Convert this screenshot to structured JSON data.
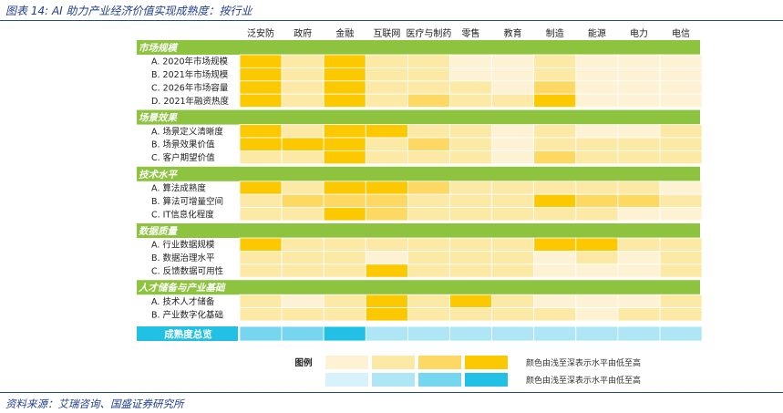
{
  "figure": {
    "title": "图表 14: AI 助力产业经济价值实现成熟度：按行业",
    "source": "资料来源：艾瑞咨询、国盛证券研究所"
  },
  "colors": {
    "section_green": "#8dc33f",
    "yellow_scale": [
      "#fdf3d4",
      "#fde9a6",
      "#fdd862",
      "#fcc800"
    ],
    "blue_scale": [
      "#d8f2fb",
      "#aee6f6",
      "#76d6ef",
      "#23c0e6"
    ],
    "summary_label_bg": "#23c0e6"
  },
  "chart_data": {
    "type": "heatmap",
    "columns": [
      "泛安防",
      "政府",
      "金融",
      "互联网",
      "医疗与制药",
      "零售",
      "教育",
      "制造",
      "能源",
      "电力",
      "电信"
    ],
    "scale_note": "levels 1 (light) to 4 (dark)",
    "sections": [
      {
        "title": "市场规模",
        "rows": [
          {
            "label": "A. 2020年市场规模",
            "values": [
              4,
              2,
              4,
              2,
              2,
              1,
              1,
              2,
              1,
              1,
              1
            ]
          },
          {
            "label": "B. 2021年市场规模",
            "values": [
              4,
              2,
              4,
              2,
              2,
              1,
              1,
              2,
              1,
              1,
              1
            ]
          },
          {
            "label": "C. 2026年市场容量",
            "values": [
              4,
              2,
              4,
              2,
              2,
              2,
              1,
              3,
              1,
              1,
              1
            ]
          },
          {
            "label": "D. 2021年融资热度",
            "values": [
              4,
              2,
              4,
              2,
              3,
              2,
              2,
              4,
              1,
              1,
              1
            ]
          }
        ]
      },
      {
        "title": "场景效果",
        "rows": [
          {
            "label": "A. 场景定义清晰度",
            "values": [
              4,
              2,
              4,
              4,
              2,
              2,
              1,
              2,
              1,
              1,
              2
            ]
          },
          {
            "label": "B. 场景效果价值",
            "values": [
              4,
              4,
              4,
              2,
              3,
              2,
              1,
              2,
              2,
              2,
              2
            ]
          },
          {
            "label": "C. 客户期望价值",
            "values": [
              2,
              2,
              4,
              2,
              2,
              2,
              1,
              3,
              2,
              2,
              2
            ]
          }
        ]
      },
      {
        "title": "技术水平",
        "rows": [
          {
            "label": "A. 算法成熟度",
            "values": [
              4,
              2,
              4,
              4,
              3,
              2,
              2,
              2,
              2,
              2,
              1
            ]
          },
          {
            "label": "B. 算法可增量空间",
            "values": [
              2,
              3,
              3,
              3,
              2,
              2,
              2,
              4,
              3,
              3,
              2
            ]
          },
          {
            "label": "C. IT信息化程度",
            "values": [
              2,
              2,
              4,
              3,
              2,
              2,
              2,
              2,
              2,
              1,
              1
            ]
          }
        ]
      },
      {
        "title": "数据质量",
        "rows": [
          {
            "label": "A. 行业数据规模",
            "values": [
              4,
              2,
              2,
              2,
              2,
              2,
              2,
              4,
              4,
              2,
              2
            ]
          },
          {
            "label": "B. 数据治理水平",
            "values": [
              2,
              2,
              2,
              1,
              2,
              2,
              2,
              1,
              2,
              1,
              2
            ]
          },
          {
            "label": "C. 反馈数据可用性",
            "values": [
              2,
              2,
              2,
              4,
              2,
              2,
              2,
              1,
              1,
              1,
              2
            ]
          }
        ]
      },
      {
        "title": "人才储备与产业基础",
        "rows": [
          {
            "label": "A. 技术人才储备",
            "values": [
              2,
              1,
              2,
              4,
              2,
              4,
              2,
              1,
              1,
              1,
              2
            ]
          },
          {
            "label": "B. 产业数字化基础",
            "values": [
              2,
              2,
              2,
              4,
              2,
              2,
              2,
              2,
              1,
              2,
              2
            ]
          }
        ]
      }
    ],
    "summary": {
      "label": "成熟度总览",
      "values": [
        3,
        3,
        4,
        2,
        2,
        2,
        2,
        2,
        2,
        2,
        2
      ]
    },
    "legend": {
      "title": "图例",
      "yellow_note": "颜色由浅至深表示水平由低至高",
      "blue_note": "颜色由浅至深表示水平由低至高"
    }
  }
}
